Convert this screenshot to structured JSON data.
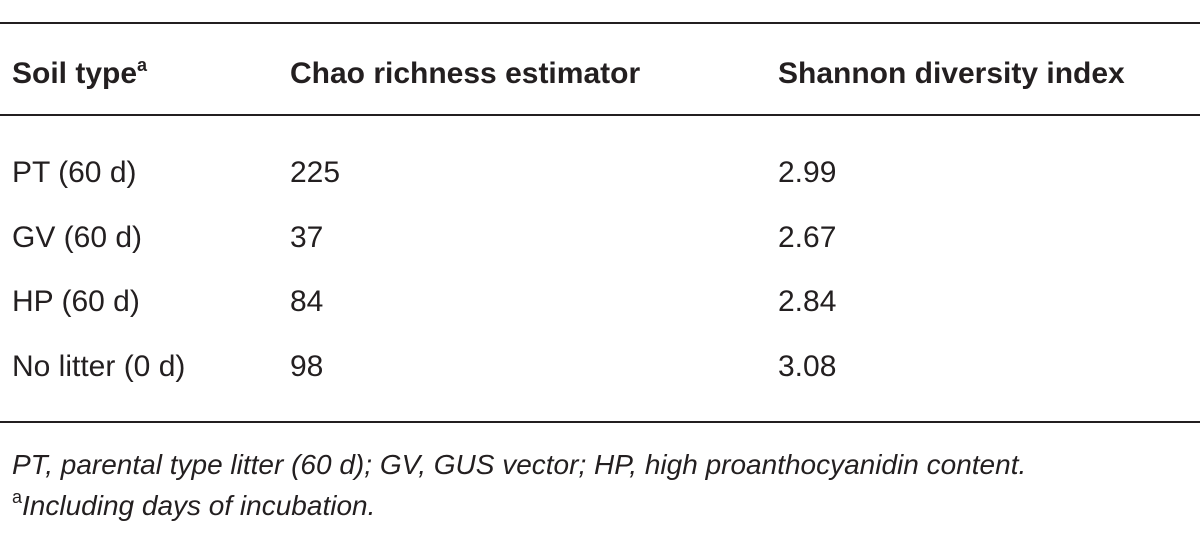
{
  "table": {
    "header": [
      "Soil type",
      "Chao richness estimator",
      "Shannon diversity index"
    ],
    "header_note_mark": "a",
    "rows": [
      [
        "PT (60 d)",
        225,
        2.99
      ],
      [
        "GV (60 d)",
        37,
        2.67
      ],
      [
        "HP (60 d)",
        84,
        2.84
      ],
      [
        "No litter (0 d)",
        98,
        3.08
      ]
    ]
  },
  "footnotes": {
    "abbreviations": "PT, parental type litter (60 d); GV, GUS vector; HP, high proanthocyanidin content.",
    "note_mark": "a",
    "note": "Including days of incubation."
  }
}
